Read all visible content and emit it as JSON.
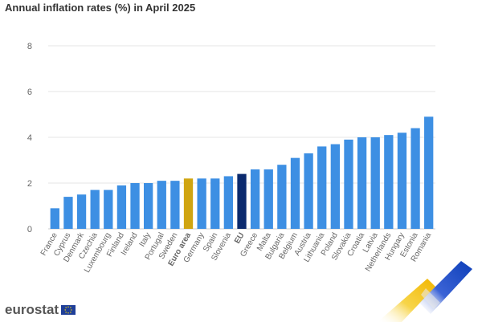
{
  "title": "Annual inflation rates (%) in April 2025",
  "logo": "eurostat",
  "colors": {
    "bar": "#3d8fe3",
    "euro_area": "#d0a511",
    "eu": "#0b2a6e",
    "grid": "#e6e6e6",
    "axis_text": "#666666"
  },
  "chart_data": {
    "type": "bar",
    "title": "Annual inflation rates (%) in April 2025",
    "xlabel": "",
    "ylabel": "",
    "ylim": [
      0,
      8
    ],
    "yticks": [
      0,
      2,
      4,
      6,
      8
    ],
    "grid": true,
    "categories": [
      "France",
      "Cyprus",
      "Denmark",
      "Czechia",
      "Luxembourg",
      "Finland",
      "Ireland",
      "Italy",
      "Portugal",
      "Sweden",
      "Euro area",
      "Germany",
      "Spain",
      "Slovenia",
      "EU",
      "Greece",
      "Malta",
      "Bulgaria",
      "Belgium",
      "Austria",
      "Lithuania",
      "Poland",
      "Slovakia",
      "Croatia",
      "Latvia",
      "Netherlands",
      "Hungary",
      "Estonia",
      "Romania"
    ],
    "values": [
      0.9,
      1.4,
      1.5,
      1.7,
      1.7,
      1.9,
      2.0,
      2.0,
      2.1,
      2.1,
      2.2,
      2.2,
      2.2,
      2.3,
      2.4,
      2.6,
      2.6,
      2.8,
      3.1,
      3.3,
      3.6,
      3.7,
      3.9,
      4.0,
      4.0,
      4.1,
      4.2,
      4.4,
      4.9
    ],
    "highlight": {
      "Euro area": "euro_area",
      "EU": "eu"
    },
    "bold_labels": [
      "Euro area",
      "EU"
    ]
  }
}
